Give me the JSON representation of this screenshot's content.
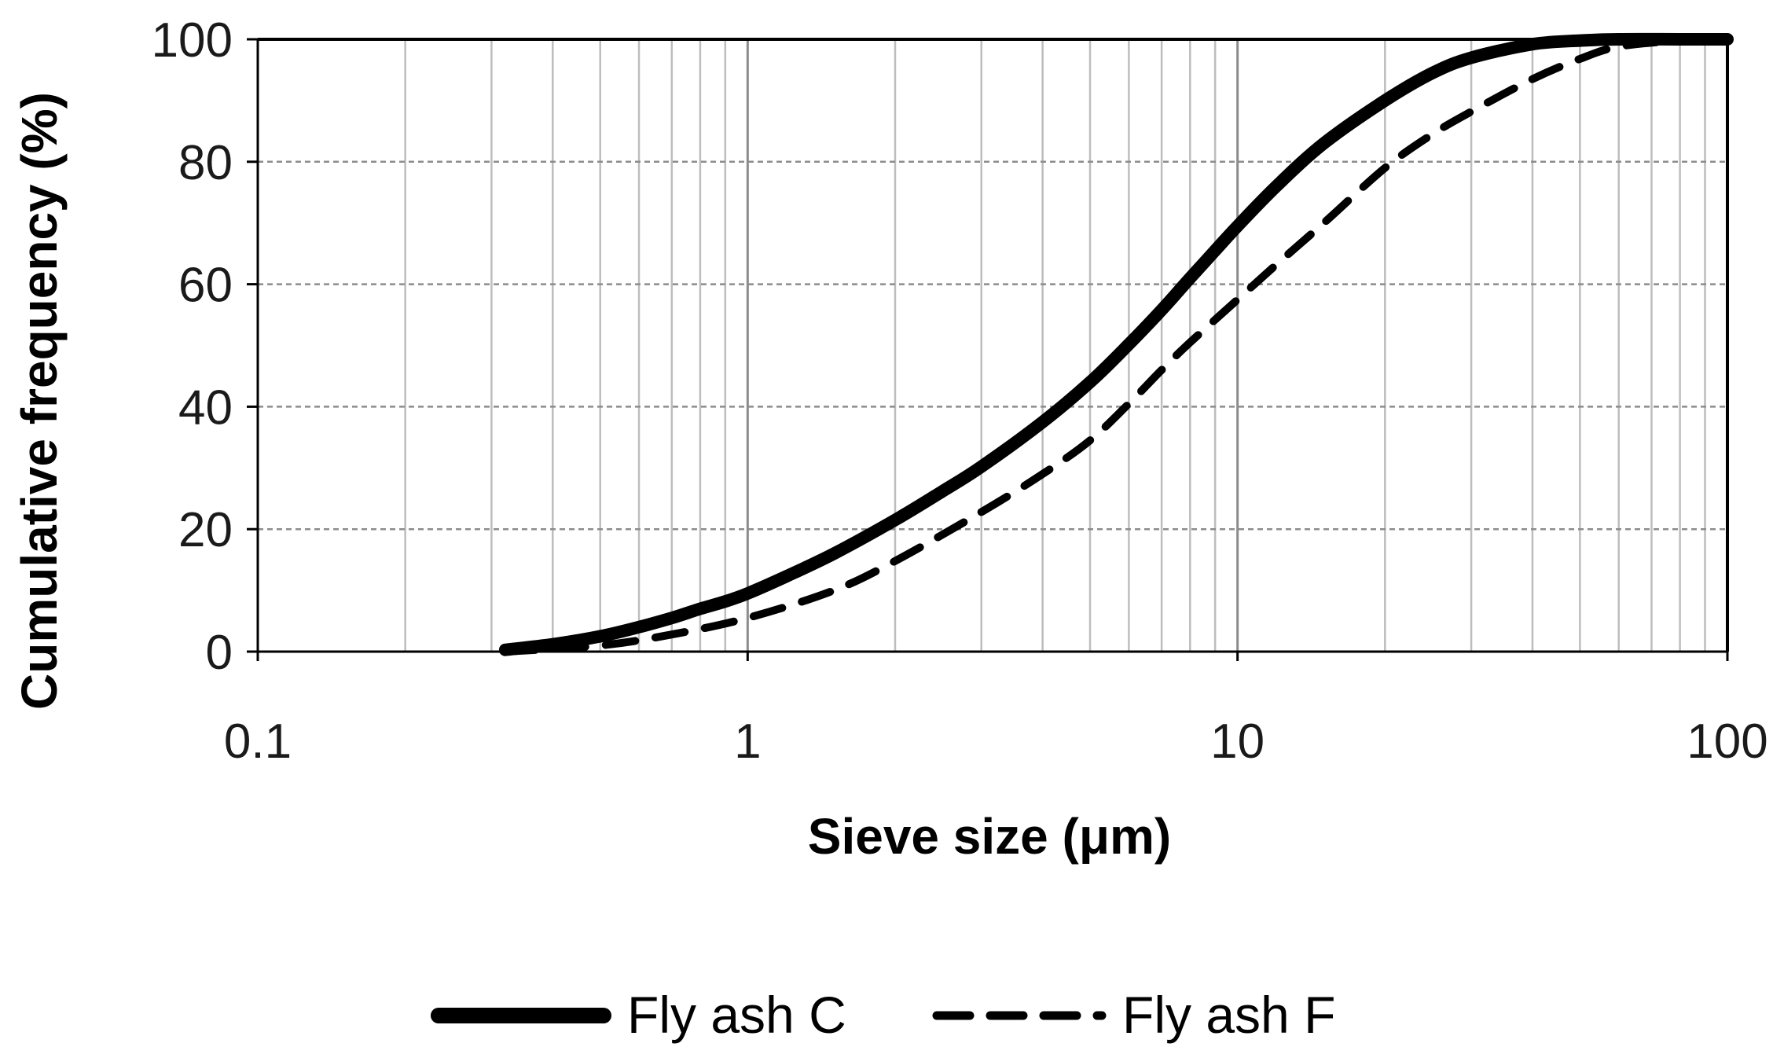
{
  "chart_data": {
    "type": "line",
    "title": "",
    "xlabel": "Sieve size (μm)",
    "ylabel": "Cumulative frequency (%)",
    "x_scale": "log",
    "xlim": [
      0.1,
      100
    ],
    "ylim": [
      0,
      100
    ],
    "x_ticks": [
      0.1,
      1,
      10,
      100
    ],
    "x_tick_labels": [
      "0.1",
      "1",
      "10",
      "100"
    ],
    "y_ticks": [
      0,
      20,
      40,
      60,
      80,
      100
    ],
    "y_tick_labels": [
      "0",
      "20",
      "40",
      "60",
      "80",
      "100"
    ],
    "grid": {
      "x_minor": true,
      "y_major": true,
      "y_style": "dashed"
    },
    "legend_position": "bottom",
    "series": [
      {
        "name": "Fly ash C",
        "style": "solid",
        "color": "#000000",
        "x": [
          0.32,
          0.4,
          0.5,
          0.6,
          0.7,
          0.8,
          0.9,
          1.0,
          1.2,
          1.5,
          2.0,
          2.5,
          3.0,
          4.0,
          5.0,
          6.0,
          7.0,
          8.0,
          9.0,
          10.0,
          12.0,
          15.0,
          20.0,
          25.0,
          30.0,
          40.0,
          50.0,
          60.0,
          80.0,
          100.0
        ],
        "y": [
          0.3,
          1.2,
          2.5,
          4.0,
          5.5,
          7.0,
          8.2,
          9.5,
          12.3,
          16.0,
          21.5,
          26.2,
          30.2,
          37.5,
          44.0,
          50.2,
          55.8,
          61.0,
          65.5,
          69.5,
          76.0,
          83.0,
          90.0,
          94.5,
          97.0,
          99.2,
          99.8,
          100.0,
          100.0,
          100.0
        ]
      },
      {
        "name": "Fly ash F",
        "style": "dashed",
        "color": "#000000",
        "x": [
          0.32,
          0.5,
          0.7,
          1.0,
          1.5,
          2.0,
          3.0,
          4.0,
          5.0,
          6.0,
          7.0,
          8.0,
          10.0,
          12.0,
          15.0,
          20.0,
          25.0,
          30.0,
          40.0,
          50.0,
          60.0,
          80.0,
          100.0
        ],
        "y": [
          0.0,
          1.0,
          2.8,
          5.5,
          10.0,
          14.8,
          22.8,
          29.0,
          34.5,
          40.5,
          46.0,
          50.5,
          57.5,
          63.2,
          70.0,
          79.0,
          84.5,
          88.2,
          93.5,
          96.8,
          98.8,
          99.8,
          100.0
        ]
      }
    ]
  }
}
